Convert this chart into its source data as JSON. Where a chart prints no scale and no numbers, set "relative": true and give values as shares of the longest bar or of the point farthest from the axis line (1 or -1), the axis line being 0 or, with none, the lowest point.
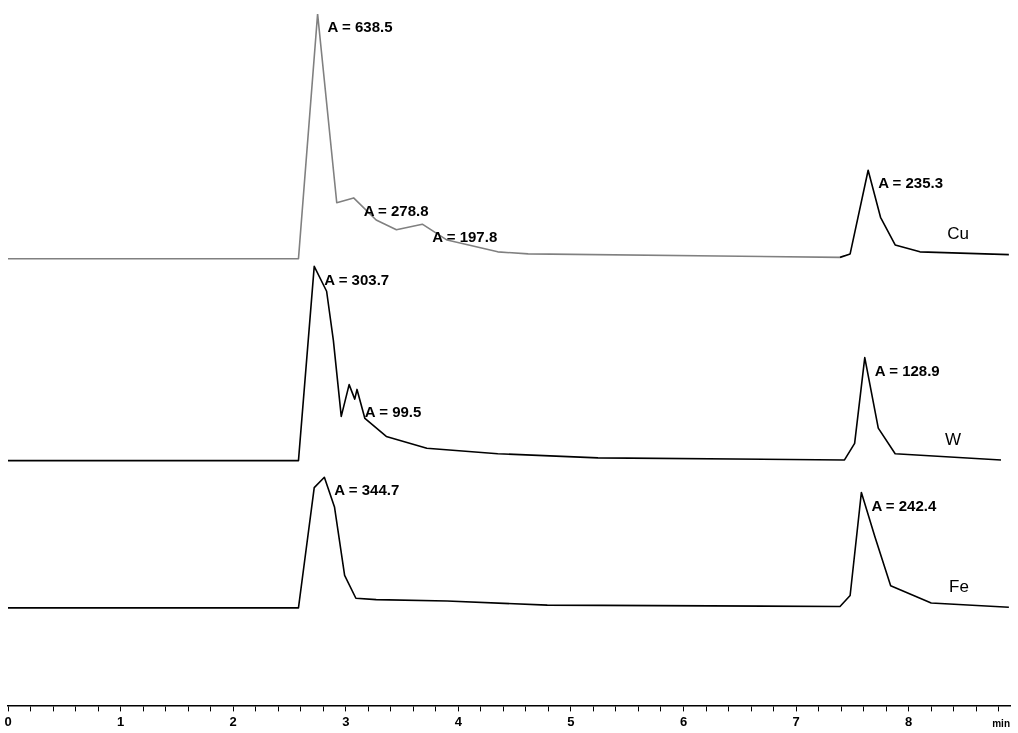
{
  "chart_data": {
    "type": "line",
    "relative": true,
    "xlabel": "min",
    "xlim": [
      0,
      8.9
    ],
    "xticks": [
      0,
      {
        "value": 0.2,
        "label": null
      },
      {
        "value": 0.4,
        "label": null
      },
      {
        "value": 0.6,
        "label": null
      },
      {
        "value": 0.8,
        "label": null
      },
      1,
      {
        "value": 1.2,
        "label": null
      },
      {
        "value": 1.4,
        "label": null
      },
      {
        "value": 1.6,
        "label": null
      },
      {
        "value": 1.8,
        "label": null
      },
      2,
      {
        "value": 2.2,
        "label": null
      },
      {
        "value": 2.4,
        "label": null
      },
      {
        "value": 2.6,
        "label": null
      },
      {
        "value": 2.8,
        "label": null
      },
      3,
      {
        "value": 3.2,
        "label": null
      },
      {
        "value": 3.4,
        "label": null
      },
      {
        "value": 3.6,
        "label": null
      },
      {
        "value": 3.8,
        "label": null
      },
      4,
      {
        "value": 4.2,
        "label": null
      },
      {
        "value": 4.4,
        "label": null
      },
      {
        "value": 4.6,
        "label": null
      },
      {
        "value": 4.8,
        "label": null
      },
      5,
      {
        "value": 5.2,
        "label": null
      },
      {
        "value": 5.4,
        "label": null
      },
      {
        "value": 5.6,
        "label": null
      },
      {
        "value": 5.8,
        "label": null
      },
      6,
      {
        "value": 6.2,
        "label": null
      },
      {
        "value": 6.4,
        "label": null
      },
      {
        "value": 6.6,
        "label": null
      },
      {
        "value": 6.8,
        "label": null
      },
      7,
      {
        "value": 7.2,
        "label": null
      },
      {
        "value": 7.4,
        "label": null
      },
      {
        "value": 7.6,
        "label": null
      },
      {
        "value": 7.8,
        "label": null
      },
      8,
      {
        "value": 8.2,
        "label": null
      },
      {
        "value": 8.4,
        "label": null
      },
      {
        "value": 8.6,
        "label": null
      },
      {
        "value": 8.8,
        "label": null
      }
    ],
    "grid": false,
    "legend": false,
    "marker": "none",
    "line_style": "solid",
    "series": [
      {
        "color": "#808080",
        "x": [
          0,
          2.58,
          2.75,
          2.92,
          3.07,
          3.27,
          3.45,
          3.68,
          3.9,
          4.35,
          4.62,
          7.39
        ],
        "values": [
          0.646,
          0.646,
          1.0,
          0.727,
          0.734,
          0.702,
          0.688,
          0.696,
          0.673,
          0.656,
          0.653,
          0.648
        ]
      },
      {
        "name": "Cu",
        "color": "#000000",
        "x": [
          7.39,
          7.48,
          7.64,
          7.75,
          7.88,
          8.1,
          8.89
        ],
        "values": [
          0.648,
          0.653,
          0.774,
          0.706,
          0.666,
          0.656,
          0.652
        ]
      },
      {
        "name": "W",
        "color": "#000000",
        "x": [
          0,
          2.58,
          2.72,
          2.83,
          2.89,
          2.96,
          3.03,
          3.08,
          3.1,
          3.17,
          3.36,
          3.72,
          4.35,
          5.24,
          7.43,
          7.52,
          7.61,
          7.73,
          7.88,
          8.82
        ],
        "values": [
          0.354,
          0.354,
          0.635,
          0.599,
          0.528,
          0.418,
          0.464,
          0.443,
          0.457,
          0.415,
          0.389,
          0.372,
          0.364,
          0.358,
          0.355,
          0.379,
          0.503,
          0.401,
          0.364,
          0.355
        ]
      },
      {
        "name": "Fe",
        "color": "#000000",
        "x": [
          0,
          2.58,
          2.72,
          2.81,
          2.9,
          2.99,
          3.09,
          3.27,
          3.9,
          4.79,
          7.39,
          7.48,
          7.58,
          7.7,
          7.84,
          8.2,
          8.89
        ],
        "values": [
          0.141,
          0.141,
          0.315,
          0.33,
          0.287,
          0.188,
          0.155,
          0.153,
          0.151,
          0.145,
          0.143,
          0.159,
          0.308,
          0.244,
          0.173,
          0.148,
          0.142
        ]
      }
    ],
    "annotations": [
      {
        "text": "A = 638.5",
        "x": 2.75,
        "y": 1.0
      },
      {
        "text": "A = 278.8",
        "x": 3.07,
        "y": 0.734
      },
      {
        "text": "A = 197.8",
        "x": 3.68,
        "y": 0.696
      },
      {
        "text": "A = 235.3",
        "x": 7.64,
        "y": 0.774
      },
      {
        "text": "A = 303.7",
        "x": 2.72,
        "y": 0.635
      },
      {
        "text": "A = 99.5",
        "x": 3.08,
        "y": 0.443
      },
      {
        "text": "A = 128.9",
        "x": 7.61,
        "y": 0.503
      },
      {
        "text": "A = 344.7",
        "x": 2.81,
        "y": 0.33
      },
      {
        "text": "A = 242.4",
        "x": 7.58,
        "y": 0.308
      }
    ]
  }
}
